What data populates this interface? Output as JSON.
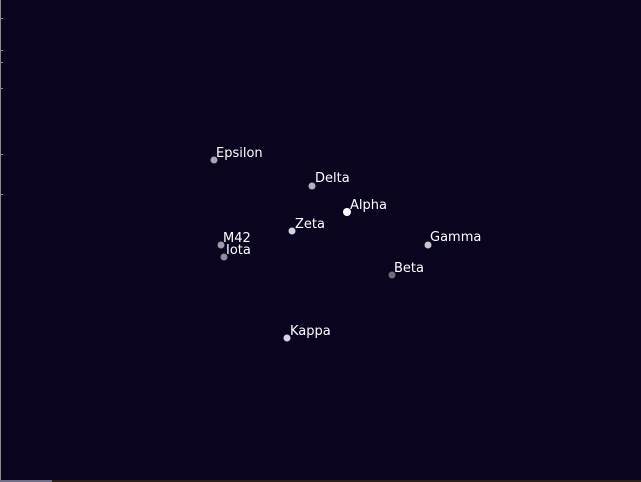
{
  "sky": {
    "background_color": "#0b0320",
    "stars": [
      {
        "name": "Epsilon",
        "color": "#a8a4b4"
      },
      {
        "name": "Delta",
        "color": "#b4b0be"
      },
      {
        "name": "Alpha",
        "color": "#ffffff"
      },
      {
        "name": "Zeta",
        "color": "#d4d0dc"
      },
      {
        "name": "M42",
        "color": "#9e9aa8"
      },
      {
        "name": "Iota",
        "color": "#8e8a98"
      },
      {
        "name": "Gamma",
        "color": "#c8c4d0"
      },
      {
        "name": "Beta",
        "color": "#6e6a78"
      },
      {
        "name": "Kappa",
        "color": "#d8d4e0"
      }
    ]
  }
}
